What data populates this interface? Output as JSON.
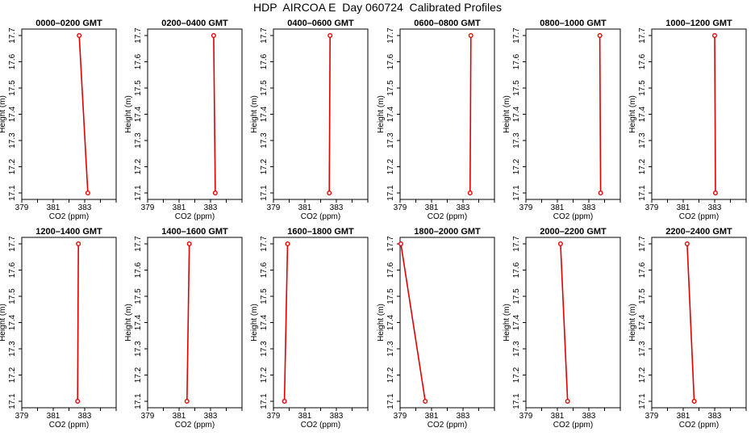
{
  "title": "HDP  AIRCOA E  Day 060724  Calibrated Profiles",
  "chart_data": [
    {
      "type": "line",
      "title": "0000–0200 GMT",
      "xlabel": "CO2 (ppm)",
      "ylabel": "Height (m)",
      "xlim": [
        379,
        385
      ],
      "ylim": [
        17.1,
        17.7
      ],
      "xticks": [
        "379",
        "381",
        "383"
      ],
      "yticks": [
        "17.1",
        "17.2",
        "17.3",
        "17.4",
        "17.5",
        "17.6",
        "17.7"
      ],
      "x": [
        383.2,
        382.65
      ],
      "y": [
        17.1,
        17.7
      ]
    },
    {
      "type": "line",
      "title": "0200–0400 GMT",
      "xlabel": "CO2 (ppm)",
      "ylabel": "Height (m)",
      "xlim": [
        379,
        385
      ],
      "ylim": [
        17.1,
        17.7
      ],
      "xticks": [
        "379",
        "381",
        "383"
      ],
      "yticks": [
        "17.1",
        "17.2",
        "17.3",
        "17.4",
        "17.5",
        "17.6",
        "17.7"
      ],
      "x": [
        383.3,
        383.2
      ],
      "y": [
        17.1,
        17.7
      ]
    },
    {
      "type": "line",
      "title": "0400–0600 GMT",
      "xlabel": "CO2 (ppm)",
      "ylabel": "Height (m)",
      "xlim": [
        379,
        385
      ],
      "ylim": [
        17.1,
        17.7
      ],
      "xticks": [
        "379",
        "381",
        "383"
      ],
      "yticks": [
        "17.1",
        "17.2",
        "17.3",
        "17.4",
        "17.5",
        "17.6",
        "17.7"
      ],
      "x": [
        382.55,
        382.6
      ],
      "y": [
        17.1,
        17.7
      ]
    },
    {
      "type": "line",
      "title": "0600–0800 GMT",
      "xlabel": "CO2 (ppm)",
      "ylabel": "Height (m)",
      "xlim": [
        379,
        385
      ],
      "ylim": [
        17.1,
        17.7
      ],
      "xticks": [
        "379",
        "381",
        "383"
      ],
      "yticks": [
        "17.1",
        "17.2",
        "17.3",
        "17.4",
        "17.5",
        "17.6",
        "17.7"
      ],
      "x": [
        383.45,
        383.5
      ],
      "y": [
        17.1,
        17.7
      ]
    },
    {
      "type": "line",
      "title": "0800–1000 GMT",
      "xlabel": "CO2 (ppm)",
      "ylabel": "Height (m)",
      "xlim": [
        379,
        385
      ],
      "ylim": [
        17.1,
        17.7
      ],
      "xticks": [
        "379",
        "381",
        "383"
      ],
      "yticks": [
        "17.1",
        "17.2",
        "17.3",
        "17.4",
        "17.5",
        "17.6",
        "17.7"
      ],
      "x": [
        383.75,
        383.7
      ],
      "y": [
        17.1,
        17.7
      ]
    },
    {
      "type": "line",
      "title": "1000–1200 GMT",
      "xlabel": "CO2 (ppm)",
      "ylabel": "Height (m)",
      "xlim": [
        379,
        385
      ],
      "ylim": [
        17.1,
        17.7
      ],
      "xticks": [
        "379",
        "381",
        "383"
      ],
      "yticks": [
        "17.1",
        "17.2",
        "17.3",
        "17.4",
        "17.5",
        "17.6",
        "17.7"
      ],
      "x": [
        383.05,
        383.0
      ],
      "y": [
        17.1,
        17.7
      ]
    },
    {
      "type": "line",
      "title": "1200–1400 GMT",
      "xlabel": "CO2 (ppm)",
      "ylabel": "Height (m)",
      "xlim": [
        379,
        385
      ],
      "ylim": [
        17.1,
        17.7
      ],
      "xticks": [
        "379",
        "381",
        "383"
      ],
      "yticks": [
        "17.1",
        "17.2",
        "17.3",
        "17.4",
        "17.5",
        "17.6",
        "17.7"
      ],
      "x": [
        382.55,
        382.6
      ],
      "y": [
        17.1,
        17.7
      ]
    },
    {
      "type": "line",
      "title": "1400–1600 GMT",
      "xlabel": "CO2 (ppm)",
      "ylabel": "Height (m)",
      "xlim": [
        379,
        385
      ],
      "ylim": [
        17.1,
        17.7
      ],
      "xticks": [
        "379",
        "381",
        "383"
      ],
      "yticks": [
        "17.1",
        "17.2",
        "17.3",
        "17.4",
        "17.5",
        "17.6",
        "17.7"
      ],
      "x": [
        381.5,
        381.65
      ],
      "y": [
        17.1,
        17.7
      ]
    },
    {
      "type": "line",
      "title": "1600–1800 GMT",
      "xlabel": "CO2 (ppm)",
      "ylabel": "Height (m)",
      "xlim": [
        379,
        385
      ],
      "ylim": [
        17.1,
        17.7
      ],
      "xticks": [
        "379",
        "381",
        "383"
      ],
      "yticks": [
        "17.1",
        "17.2",
        "17.3",
        "17.4",
        "17.5",
        "17.6",
        "17.7"
      ],
      "x": [
        379.7,
        379.9
      ],
      "y": [
        17.1,
        17.7
      ]
    },
    {
      "type": "line",
      "title": "1800–2000 GMT",
      "xlabel": "CO2 (ppm)",
      "ylabel": "Height (m)",
      "xlim": [
        379,
        385
      ],
      "ylim": [
        17.1,
        17.7
      ],
      "xticks": [
        "379",
        "381",
        "383"
      ],
      "yticks": [
        "17.1",
        "17.2",
        "17.3",
        "17.4",
        "17.5",
        "17.6",
        "17.7"
      ],
      "x": [
        380.6,
        379.05
      ],
      "y": [
        17.1,
        17.7
      ]
    },
    {
      "type": "line",
      "title": "2000–2200 GMT",
      "xlabel": "CO2 (ppm)",
      "ylabel": "Height (m)",
      "xlim": [
        379,
        385
      ],
      "ylim": [
        17.1,
        17.7
      ],
      "xticks": [
        "379",
        "381",
        "383"
      ],
      "yticks": [
        "17.1",
        "17.2",
        "17.3",
        "17.4",
        "17.5",
        "17.6",
        "17.7"
      ],
      "x": [
        381.65,
        381.2
      ],
      "y": [
        17.1,
        17.7
      ]
    },
    {
      "type": "line",
      "title": "2200–2400 GMT",
      "xlabel": "CO2 (ppm)",
      "ylabel": "Height (m)",
      "xlim": [
        379,
        385
      ],
      "ylim": [
        17.1,
        17.7
      ],
      "xticks": [
        "379",
        "381",
        "383"
      ],
      "yticks": [
        "17.1",
        "17.2",
        "17.3",
        "17.4",
        "17.5",
        "17.6",
        "17.7"
      ],
      "x": [
        381.7,
        381.25
      ],
      "y": [
        17.1,
        17.7
      ]
    }
  ]
}
